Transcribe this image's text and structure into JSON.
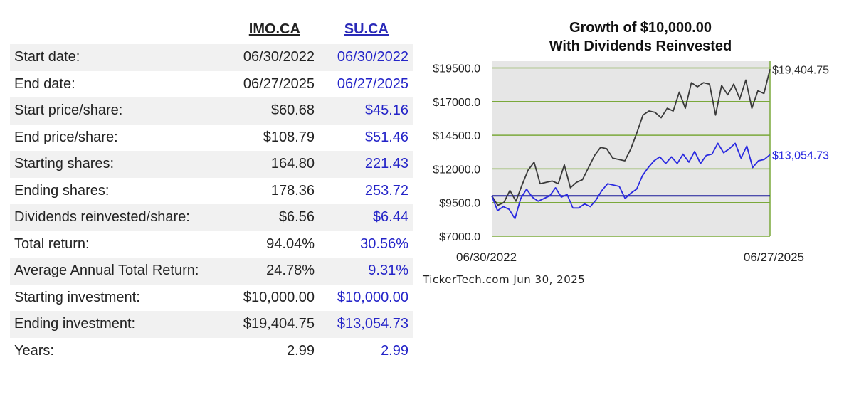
{
  "table": {
    "headers": [
      "IMO.CA",
      "SU.CA"
    ],
    "rows": [
      {
        "label": "Start date:",
        "v1": "06/30/2022",
        "v2": "06/30/2022"
      },
      {
        "label": "End date:",
        "v1": "06/27/2025",
        "v2": "06/27/2025"
      },
      {
        "label": "Start price/share:",
        "v1": "$60.68",
        "v2": "$45.16"
      },
      {
        "label": "End price/share:",
        "v1": "$108.79",
        "v2": "$51.46"
      },
      {
        "label": "Starting shares:",
        "v1": "164.80",
        "v2": "221.43"
      },
      {
        "label": "Ending shares:",
        "v1": "178.36",
        "v2": "253.72"
      },
      {
        "label": "Dividends reinvested/share:",
        "v1": "$6.56",
        "v2": "$6.44"
      },
      {
        "label": "Total return:",
        "v1": "94.04%",
        "v2": "30.56%"
      },
      {
        "label": "Average Annual Total Return:",
        "v1": "24.78%",
        "v2": "9.31%"
      },
      {
        "label": "Starting investment:",
        "v1": "$10,000.00",
        "v2": "$10,000.00"
      },
      {
        "label": "Ending investment:",
        "v1": "$19,404.75",
        "v2": "$13,054.73"
      },
      {
        "label": "Years:",
        "v1": "2.99",
        "v2": "2.99"
      }
    ]
  },
  "chart_data": {
    "type": "line",
    "title": "Growth of $10,000.00",
    "subtitle": "With Dividends Reinvested",
    "x_start_label": "06/30/2022",
    "x_end_label": "06/27/2025",
    "ylim": [
      7000,
      20000
    ],
    "y_ticks": [
      7000,
      9500,
      12000,
      14500,
      17000,
      19500
    ],
    "y_tick_labels": [
      "$7000.0",
      "$9500.0",
      "$12000.0",
      "$14500.0",
      "$17000.0",
      "$19500.0"
    ],
    "baseline": 10000,
    "grid": "horizontal",
    "colors": {
      "imo": "#3a3a3a",
      "su": "#2a2ae0",
      "baseline": "#1a1a9a",
      "grid": "#7aa83a",
      "plot_bg": "#e6e6e6"
    },
    "series": [
      {
        "name": "IMO.CA",
        "end_label": "$19,404.75",
        "values": [
          10000,
          9300,
          9500,
          10400,
          9600,
          10800,
          11900,
          12500,
          10900,
          11000,
          11100,
          10900,
          12300,
          10600,
          11000,
          11200,
          12100,
          13000,
          13600,
          13500,
          12800,
          12700,
          12600,
          13500,
          14700,
          16000,
          16300,
          16200,
          15800,
          16500,
          16300,
          17700,
          16500,
          18400,
          18100,
          18400,
          18300,
          16000,
          18200,
          17500,
          18300,
          17200,
          18600,
          16500,
          17800,
          17600,
          19404.75
        ]
      },
      {
        "name": "SU.CA",
        "end_label": "$13,054.73",
        "values": [
          10000,
          8900,
          9200,
          9000,
          8300,
          9800,
          10500,
          9900,
          9600,
          9800,
          10000,
          10600,
          9900,
          10100,
          9100,
          9100,
          9400,
          9200,
          9700,
          10400,
          10900,
          10800,
          10700,
          9800,
          10200,
          10500,
          11500,
          12100,
          12600,
          12900,
          12400,
          12900,
          12400,
          13100,
          12500,
          13300,
          12400,
          13000,
          13100,
          13900,
          13200,
          13500,
          13900,
          12800,
          13700,
          12100,
          12600,
          12700,
          13054.73
        ]
      }
    ]
  },
  "footer": {
    "credit": "TickerTech.com  Jun 30, 2025"
  }
}
